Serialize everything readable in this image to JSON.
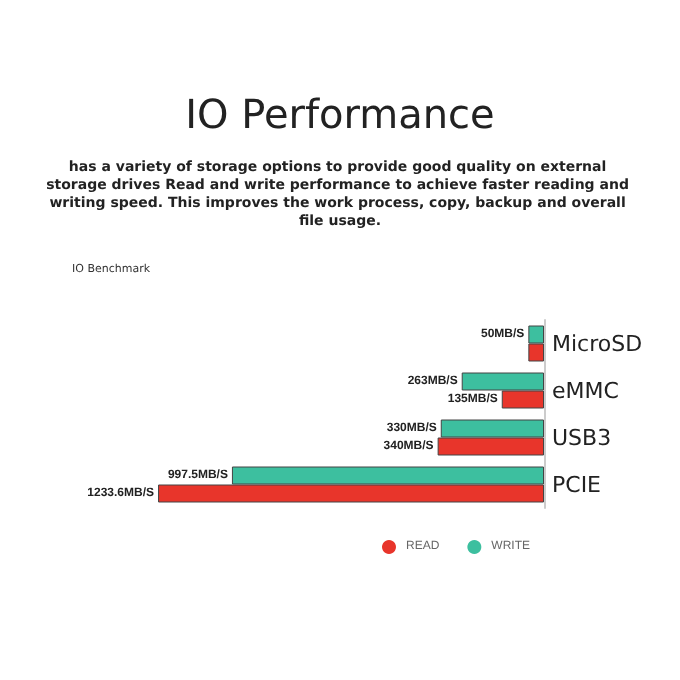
{
  "chart_data": {
    "type": "bar",
    "orientation": "horizontal",
    "title": "IO Performance",
    "subtitle": "has a variety of storage options to provide good quality on external storage drives Read and write performance to achieve faster reading and writing speed. This improves the work process, copy, backup and overall file usage.",
    "annotations": [
      "IO Benchmark"
    ],
    "categories": [
      "MicroSD",
      "eMMC",
      "USB3",
      "PCIE"
    ],
    "series": [
      {
        "name": "WRITE",
        "color": "#3dbf9f",
        "values": [
          50,
          263,
          330,
          997.5
        ],
        "value_labels": [
          "50MB/S",
          "263MB/S",
          "330MB/S",
          "997.5MB/S"
        ]
      },
      {
        "name": "READ",
        "color": "#e8352b",
        "values": [
          50,
          135,
          340,
          1233.6
        ],
        "value_labels": [
          null,
          "135MB/S",
          "340MB/S",
          "1233.6MB/S"
        ]
      }
    ],
    "legend": "bottom right"
  }
}
